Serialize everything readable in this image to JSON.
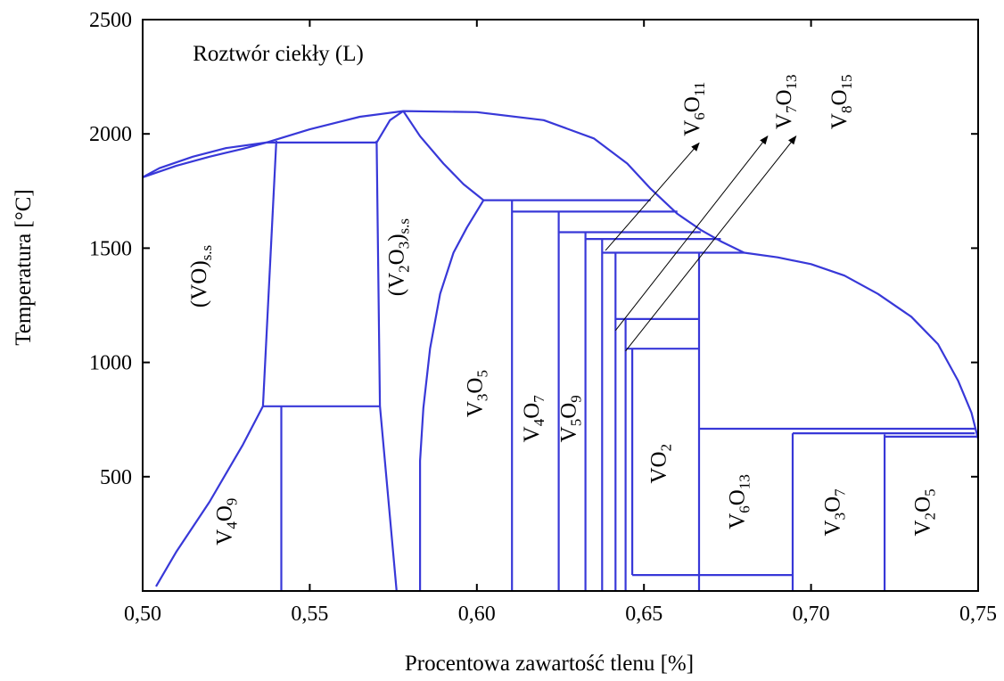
{
  "chart_data": {
    "type": "line",
    "title": "",
    "xlabel": "Procentowa zawartość tlenu [%]",
    "ylabel": "Temperatura [°C]",
    "xlim": [
      0.5,
      0.75
    ],
    "ylim": [
      0,
      2500
    ],
    "xticks": [
      {
        "value": 0.5,
        "label": "0,50"
      },
      {
        "value": 0.55,
        "label": "0,55"
      },
      {
        "value": 0.6,
        "label": "0,60"
      },
      {
        "value": 0.65,
        "label": "0,65"
      },
      {
        "value": 0.7,
        "label": "0,70"
      },
      {
        "value": 0.75,
        "label": "0,75"
      }
    ],
    "yticks": [
      {
        "value": 500,
        "label": "500"
      },
      {
        "value": 1000,
        "label": "1000"
      },
      {
        "value": 1500,
        "label": "1500"
      },
      {
        "value": 2000,
        "label": "2000"
      },
      {
        "value": 2500,
        "label": "2500"
      }
    ],
    "grid": false,
    "line_color": "#3838d8",
    "boundaries": [
      {
        "id": "liquidus-left-upper",
        "points": [
          [
            0.5,
            1810
          ],
          [
            0.505,
            1850
          ],
          [
            0.515,
            1900
          ],
          [
            0.525,
            1938
          ],
          [
            0.537,
            1962
          ]
        ]
      },
      {
        "id": "liquidus-left-lower",
        "points": [
          [
            0.5,
            1810
          ],
          [
            0.51,
            1860
          ],
          [
            0.52,
            1900
          ],
          [
            0.53,
            1935
          ],
          [
            0.537,
            1962
          ]
        ]
      },
      {
        "id": "liquidus-main",
        "points": [
          [
            0.537,
            1962
          ],
          [
            0.55,
            2020
          ],
          [
            0.565,
            2075
          ],
          [
            0.578,
            2100
          ],
          [
            0.6,
            2095
          ],
          [
            0.62,
            2060
          ],
          [
            0.635,
            1980
          ],
          [
            0.645,
            1870
          ],
          [
            0.652,
            1760
          ],
          [
            0.66,
            1650
          ],
          [
            0.667,
            1580
          ],
          [
            0.673,
            1530
          ],
          [
            0.68,
            1480
          ],
          [
            0.69,
            1460
          ],
          [
            0.7,
            1430
          ],
          [
            0.71,
            1380
          ],
          [
            0.72,
            1300
          ],
          [
            0.73,
            1200
          ],
          [
            0.738,
            1080
          ],
          [
            0.744,
            920
          ],
          [
            0.748,
            780
          ],
          [
            0.75,
            665
          ]
        ]
      },
      {
        "id": "vo-left-solvus",
        "points": [
          [
            0.504,
            20
          ],
          [
            0.51,
            170
          ],
          [
            0.52,
            390
          ],
          [
            0.53,
            640
          ],
          [
            0.536,
            808
          ]
        ]
      },
      {
        "id": "vo-right-solvus",
        "points": [
          [
            0.536,
            808
          ],
          [
            0.54,
            1970
          ]
        ]
      },
      {
        "id": "v2o3-left-boundary",
        "points": [
          [
            0.57,
            1970
          ],
          [
            0.571,
            810
          ],
          [
            0.576,
            0
          ]
        ]
      },
      {
        "id": "v2o3-liquidus-dip-left",
        "points": [
          [
            0.57,
            1962
          ],
          [
            0.574,
            2060
          ],
          [
            0.578,
            2100
          ]
        ]
      },
      {
        "id": "v2o3-liquidus-dip-right",
        "points": [
          [
            0.578,
            2100
          ],
          [
            0.583,
            1990
          ],
          [
            0.59,
            1870
          ],
          [
            0.596,
            1780
          ],
          [
            0.602,
            1710
          ]
        ]
      },
      {
        "id": "v2o3-right-solvus",
        "points": [
          [
            0.602,
            1710
          ],
          [
            0.597,
            1590
          ],
          [
            0.593,
            1480
          ],
          [
            0.589,
            1300
          ],
          [
            0.586,
            1060
          ],
          [
            0.584,
            800
          ],
          [
            0.583,
            570
          ],
          [
            0.583,
            0
          ]
        ]
      },
      {
        "id": "eutectoid-808",
        "points": [
          [
            0.536,
            808
          ],
          [
            0.571,
            808
          ]
        ]
      },
      {
        "id": "peritectic-1962",
        "points": [
          [
            0.537,
            1962
          ],
          [
            0.57,
            1962
          ]
        ]
      },
      {
        "id": "v4o9-line",
        "points": [
          [
            0.5415,
            0
          ],
          [
            0.5415,
            808
          ]
        ]
      },
      {
        "id": "v3o5-line",
        "points": [
          [
            0.6105,
            0
          ],
          [
            0.6105,
            1710
          ]
        ]
      },
      {
        "id": "v4o7-line",
        "points": [
          [
            0.6245,
            0
          ],
          [
            0.6245,
            1660
          ]
        ]
      },
      {
        "id": "v5o9-line",
        "points": [
          [
            0.6325,
            0
          ],
          [
            0.6325,
            1570
          ]
        ]
      },
      {
        "id": "v6o11-line",
        "points": [
          [
            0.6375,
            0
          ],
          [
            0.6375,
            1540
          ]
        ]
      },
      {
        "id": "v7o13-line",
        "points": [
          [
            0.6415,
            0
          ],
          [
            0.6415,
            1480
          ]
        ]
      },
      {
        "id": "v8o15-line",
        "points": [
          [
            0.6445,
            0
          ],
          [
            0.6445,
            1190
          ]
        ]
      },
      {
        "id": "vo2-left-line",
        "points": [
          [
            0.6465,
            70
          ],
          [
            0.6465,
            1060
          ]
        ]
      },
      {
        "id": "v6o13-line",
        "points": [
          [
            0.6665,
            0
          ],
          [
            0.6665,
            1480
          ]
        ]
      },
      {
        "id": "v3o7-line",
        "points": [
          [
            0.6945,
            0
          ],
          [
            0.6945,
            690
          ]
        ]
      },
      {
        "id": "v2o5-line",
        "points": [
          [
            0.722,
            0
          ],
          [
            0.722,
            685
          ]
        ]
      },
      {
        "id": "h-1710",
        "points": [
          [
            0.602,
            1710
          ],
          [
            0.652,
            1710
          ]
        ]
      },
      {
        "id": "h-1660",
        "points": [
          [
            0.6105,
            1660
          ],
          [
            0.66,
            1660
          ]
        ]
      },
      {
        "id": "h-1570",
        "points": [
          [
            0.6245,
            1570
          ],
          [
            0.667,
            1570
          ]
        ]
      },
      {
        "id": "h-1540",
        "points": [
          [
            0.6325,
            1540
          ],
          [
            0.673,
            1540
          ]
        ]
      },
      {
        "id": "h-1480",
        "points": [
          [
            0.6375,
            1480
          ],
          [
            0.68,
            1480
          ]
        ]
      },
      {
        "id": "h-1190",
        "points": [
          [
            0.6415,
            1190
          ],
          [
            0.6665,
            1190
          ]
        ]
      },
      {
        "id": "h-1060",
        "points": [
          [
            0.6445,
            1060
          ],
          [
            0.6665,
            1060
          ]
        ]
      },
      {
        "id": "h-70",
        "points": [
          [
            0.6465,
            70
          ],
          [
            0.6945,
            70
          ]
        ]
      },
      {
        "id": "h-710",
        "points": [
          [
            0.6665,
            710
          ],
          [
            0.749,
            710
          ]
        ]
      },
      {
        "id": "h-690",
        "points": [
          [
            0.6945,
            690
          ],
          [
            0.749,
            690
          ]
        ]
      },
      {
        "id": "h-675",
        "points": [
          [
            0.722,
            675
          ],
          [
            0.75,
            675
          ]
        ]
      }
    ],
    "arrows": [
      {
        "id": "arrow-v6o11",
        "from": [
          0.6385,
          1490
        ],
        "to": [
          0.6665,
          1960
        ]
      },
      {
        "id": "arrow-v7o13",
        "from": [
          0.6415,
          1140
        ],
        "to": [
          0.687,
          1990
        ]
      },
      {
        "id": "arrow-v8o15",
        "from": [
          0.6445,
          1050
        ],
        "to": [
          0.6955,
          1990
        ]
      }
    ],
    "annotations": [
      {
        "id": "label-liquid",
        "x": 0.515,
        "y": 2320,
        "rotate": 0,
        "parts": [
          {
            "t": "Roztwór ciekły (L)"
          }
        ]
      },
      {
        "id": "label-vo-ss",
        "x": 0.519,
        "y": 1240,
        "rotate": -90,
        "parts": [
          {
            "t": "(VO)"
          },
          {
            "t": "s.s",
            "sub": true
          }
        ]
      },
      {
        "id": "label-v2o3-ss",
        "x": 0.578,
        "y": 1290,
        "rotate": -90,
        "parts": [
          {
            "t": "(V"
          },
          {
            "t": "2",
            "sub": true
          },
          {
            "t": "O"
          },
          {
            "t": "3",
            "sub": true
          },
          {
            "t": ")"
          },
          {
            "t": "s.s",
            "sub": true
          }
        ]
      },
      {
        "id": "label-v4o9",
        "x": 0.5265,
        "y": 200,
        "rotate": -90,
        "parts": [
          {
            "t": "V"
          },
          {
            "t": "4",
            "sub": true
          },
          {
            "t": "O"
          },
          {
            "t": "9",
            "sub": true
          }
        ]
      },
      {
        "id": "label-v3o5",
        "x": 0.6015,
        "y": 760,
        "rotate": -90,
        "parts": [
          {
            "t": "V"
          },
          {
            "t": "3",
            "sub": true
          },
          {
            "t": "O"
          },
          {
            "t": "5",
            "sub": true
          }
        ]
      },
      {
        "id": "label-v4o7",
        "x": 0.6185,
        "y": 650,
        "rotate": -90,
        "parts": [
          {
            "t": "V"
          },
          {
            "t": "4",
            "sub": true
          },
          {
            "t": "O"
          },
          {
            "t": "7",
            "sub": true
          }
        ]
      },
      {
        "id": "label-v5o9",
        "x": 0.6295,
        "y": 650,
        "rotate": -90,
        "parts": [
          {
            "t": "V"
          },
          {
            "t": "5",
            "sub": true
          },
          {
            "t": "O"
          },
          {
            "t": "9",
            "sub": true
          }
        ]
      },
      {
        "id": "label-vo2",
        "x": 0.6565,
        "y": 470,
        "rotate": -90,
        "parts": [
          {
            "t": "VO"
          },
          {
            "t": "2",
            "sub": true
          }
        ]
      },
      {
        "id": "label-v6o13",
        "x": 0.68,
        "y": 270,
        "rotate": -90,
        "parts": [
          {
            "t": "V"
          },
          {
            "t": "6",
            "sub": true
          },
          {
            "t": "O"
          },
          {
            "t": "13",
            "sub": true
          }
        ]
      },
      {
        "id": "label-v3o7",
        "x": 0.7085,
        "y": 240,
        "rotate": -90,
        "parts": [
          {
            "t": "V"
          },
          {
            "t": "3",
            "sub": true
          },
          {
            "t": "O"
          },
          {
            "t": "7",
            "sub": true
          }
        ]
      },
      {
        "id": "label-v2o5",
        "x": 0.7355,
        "y": 240,
        "rotate": -90,
        "parts": [
          {
            "t": "V"
          },
          {
            "t": "2",
            "sub": true
          },
          {
            "t": "O"
          },
          {
            "t": "5",
            "sub": true
          }
        ]
      },
      {
        "id": "label-v6o11",
        "x": 0.6665,
        "y": 1990,
        "rotate": -90,
        "parts": [
          {
            "t": "V"
          },
          {
            "t": "6",
            "sub": true
          },
          {
            "t": "O"
          },
          {
            "t": "11",
            "sub": true
          }
        ]
      },
      {
        "id": "label-v7o13",
        "x": 0.694,
        "y": 2020,
        "rotate": -90,
        "parts": [
          {
            "t": "V"
          },
          {
            "t": "7",
            "sub": true
          },
          {
            "t": "O"
          },
          {
            "t": "13",
            "sub": true
          }
        ]
      },
      {
        "id": "label-v8o15",
        "x": 0.7105,
        "y": 2020,
        "rotate": -90,
        "parts": [
          {
            "t": "V"
          },
          {
            "t": "8",
            "sub": true
          },
          {
            "t": "O"
          },
          {
            "t": "15",
            "sub": true
          }
        ]
      }
    ]
  }
}
